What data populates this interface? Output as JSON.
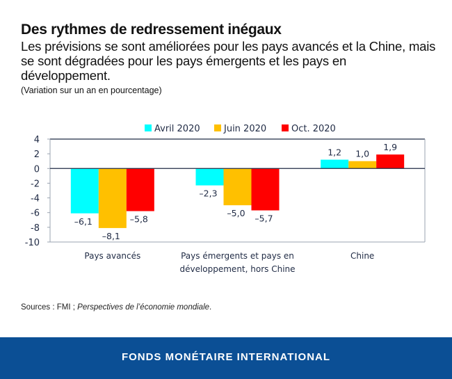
{
  "header": {
    "title": "Des rythmes de redressement inégaux",
    "subtitle": "Les prévisions se sont améliorées pour les pays avancés et la Chine, mais se sont dégradées pour les pays émergents et les pays en développement.",
    "units": "(Variation sur un an en pourcentage)"
  },
  "sources": {
    "prefix": "Sources : FMI ; ",
    "publication": "Perspectives de l’économie mondiale",
    "suffix": "."
  },
  "footer": {
    "text": "FONDS MONÉTAIRE INTERNATIONAL",
    "color": "#0b4f95"
  },
  "chart_data": {
    "type": "bar",
    "title": "Des rythmes de redressement inégaux",
    "xlabel": "",
    "ylabel": "Variation sur un an en pourcentage",
    "ylim": [
      -10,
      4
    ],
    "yticks": [
      4,
      2,
      0,
      -2,
      -4,
      -6,
      -8,
      -10
    ],
    "ytick_labels": [
      "4",
      "2",
      "0",
      "-2",
      "-4",
      "-6",
      "-8",
      "-10"
    ],
    "grid": false,
    "legend_position": "top-center",
    "categories": [
      [
        "Pays avancés"
      ],
      [
        "Pays émergents et pays en",
        "développement, hors Chine"
      ],
      [
        "Chine"
      ]
    ],
    "series": [
      {
        "name": "Avril 2020",
        "color": "#00ffff",
        "values": [
          -6.1,
          -2.3,
          1.2
        ],
        "labels": [
          "–6,1",
          "–2,3",
          "1,2"
        ]
      },
      {
        "name": "Juin 2020",
        "color": "#ffc000",
        "values": [
          -8.1,
          -5.0,
          1.0
        ],
        "labels": [
          "–8,1",
          "–5,0",
          "1,0"
        ]
      },
      {
        "name": "Oct. 2020",
        "color": "#ff0000",
        "values": [
          -5.8,
          -5.7,
          1.9
        ],
        "labels": [
          "–5,8",
          "–5,7",
          "1,9"
        ]
      }
    ]
  }
}
